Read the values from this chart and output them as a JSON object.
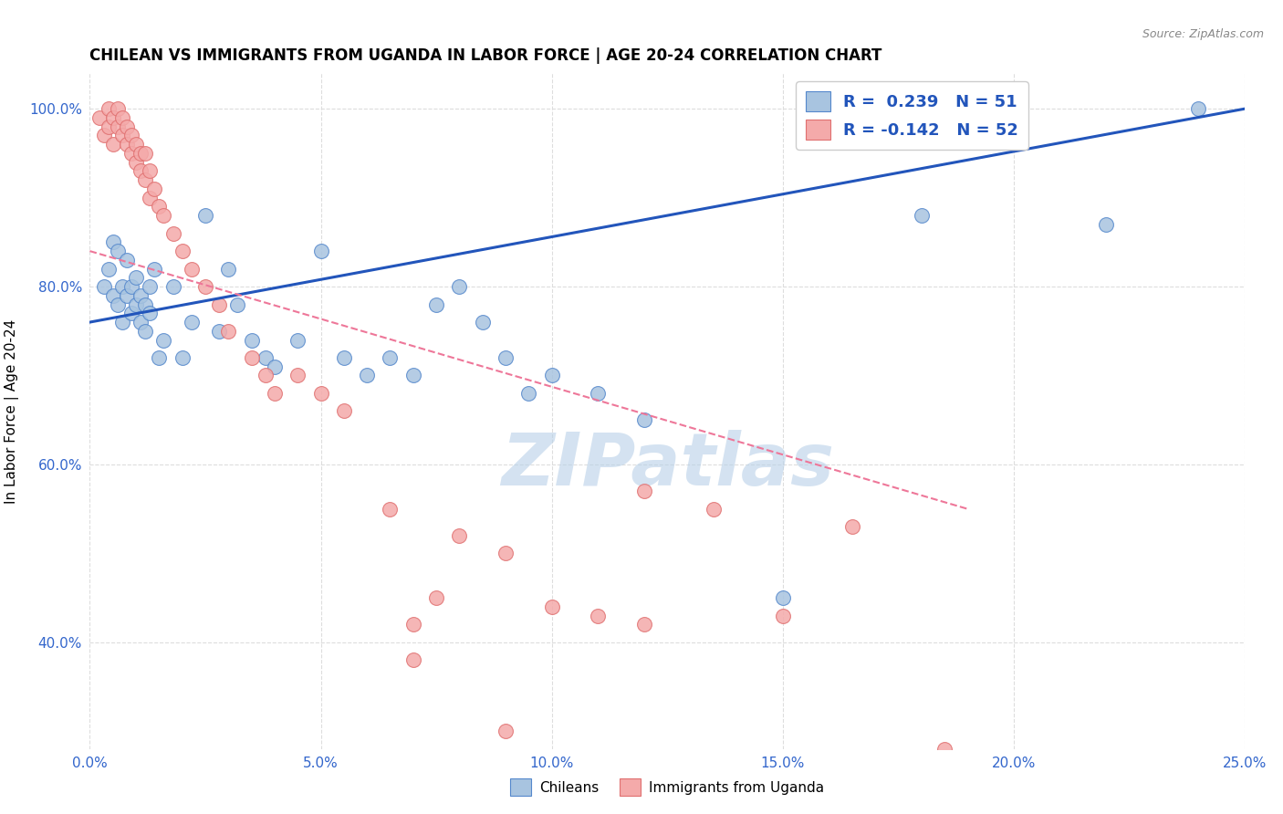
{
  "title": "CHILEAN VS IMMIGRANTS FROM UGANDA IN LABOR FORCE | AGE 20-24 CORRELATION CHART",
  "source": "Source: ZipAtlas.com",
  "ylabel": "In Labor Force | Age 20-24",
  "xlim": [
    0.0,
    0.25
  ],
  "ylim": [
    0.28,
    1.04
  ],
  "xticks": [
    0.0,
    0.05,
    0.1,
    0.15,
    0.2,
    0.25
  ],
  "yticks": [
    0.4,
    0.6,
    0.8,
    1.0
  ],
  "ytick_labels": [
    "40.0%",
    "60.0%",
    "80.0%",
    "100.0%"
  ],
  "xtick_labels": [
    "0.0%",
    "5.0%",
    "10.0%",
    "15.0%",
    "20.0%",
    "25.0%"
  ],
  "blue_color": "#a8c4e0",
  "pink_color": "#f4aaaa",
  "blue_edge_color": "#5588cc",
  "pink_edge_color": "#e07070",
  "blue_line_color": "#2255bb",
  "pink_line_color": "#ee7799",
  "legend_r_blue": "R =  0.239   N = 51",
  "legend_r_pink": "R = -0.142   N = 52",
  "watermark": "ZIPatlas",
  "watermark_color": "#b8d0e8",
  "legend1_label": "Chileans",
  "legend2_label": "Immigrants from Uganda",
  "blue_scatter_x": [
    0.003,
    0.004,
    0.005,
    0.005,
    0.006,
    0.006,
    0.007,
    0.007,
    0.008,
    0.008,
    0.009,
    0.009,
    0.01,
    0.01,
    0.011,
    0.011,
    0.012,
    0.012,
    0.013,
    0.013,
    0.014,
    0.015,
    0.016,
    0.018,
    0.02,
    0.022,
    0.025,
    0.028,
    0.03,
    0.032,
    0.035,
    0.038,
    0.04,
    0.045,
    0.05,
    0.055,
    0.06,
    0.065,
    0.07,
    0.075,
    0.08,
    0.085,
    0.09,
    0.095,
    0.1,
    0.11,
    0.12,
    0.15,
    0.18,
    0.22,
    0.24
  ],
  "blue_scatter_y": [
    0.8,
    0.82,
    0.79,
    0.85,
    0.78,
    0.84,
    0.8,
    0.76,
    0.79,
    0.83,
    0.77,
    0.8,
    0.78,
    0.81,
    0.76,
    0.79,
    0.78,
    0.75,
    0.77,
    0.8,
    0.82,
    0.72,
    0.74,
    0.8,
    0.72,
    0.76,
    0.88,
    0.75,
    0.82,
    0.78,
    0.74,
    0.72,
    0.71,
    0.74,
    0.84,
    0.72,
    0.7,
    0.72,
    0.7,
    0.78,
    0.8,
    0.76,
    0.72,
    0.68,
    0.7,
    0.68,
    0.65,
    0.45,
    0.88,
    0.87,
    1.0
  ],
  "pink_scatter_x": [
    0.002,
    0.003,
    0.004,
    0.004,
    0.005,
    0.005,
    0.006,
    0.006,
    0.007,
    0.007,
    0.008,
    0.008,
    0.009,
    0.009,
    0.01,
    0.01,
    0.011,
    0.011,
    0.012,
    0.012,
    0.013,
    0.013,
    0.014,
    0.015,
    0.016,
    0.018,
    0.02,
    0.022,
    0.025,
    0.028,
    0.03,
    0.035,
    0.038,
    0.04,
    0.045,
    0.05,
    0.055,
    0.065,
    0.07,
    0.075,
    0.08,
    0.09,
    0.1,
    0.11,
    0.12,
    0.135,
    0.15,
    0.165,
    0.185,
    0.07,
    0.09,
    0.12
  ],
  "pink_scatter_y": [
    0.99,
    0.97,
    1.0,
    0.98,
    0.99,
    0.96,
    0.98,
    1.0,
    0.97,
    0.99,
    0.96,
    0.98,
    0.95,
    0.97,
    0.94,
    0.96,
    0.93,
    0.95,
    0.95,
    0.92,
    0.93,
    0.9,
    0.91,
    0.89,
    0.88,
    0.86,
    0.84,
    0.82,
    0.8,
    0.78,
    0.75,
    0.72,
    0.7,
    0.68,
    0.7,
    0.68,
    0.66,
    0.55,
    0.42,
    0.45,
    0.52,
    0.5,
    0.44,
    0.43,
    0.42,
    0.55,
    0.43,
    0.53,
    0.28,
    0.38,
    0.3,
    0.57
  ],
  "blue_trend_x": [
    0.0,
    0.25
  ],
  "blue_trend_y": [
    0.76,
    1.0
  ],
  "pink_trend_x": [
    0.0,
    0.19
  ],
  "pink_trend_y": [
    0.84,
    0.55
  ],
  "background_color": "#ffffff",
  "grid_color": "#dddddd",
  "title_fontsize": 12,
  "axis_label_fontsize": 11,
  "tick_fontsize": 11,
  "tick_color": "#3366CC"
}
